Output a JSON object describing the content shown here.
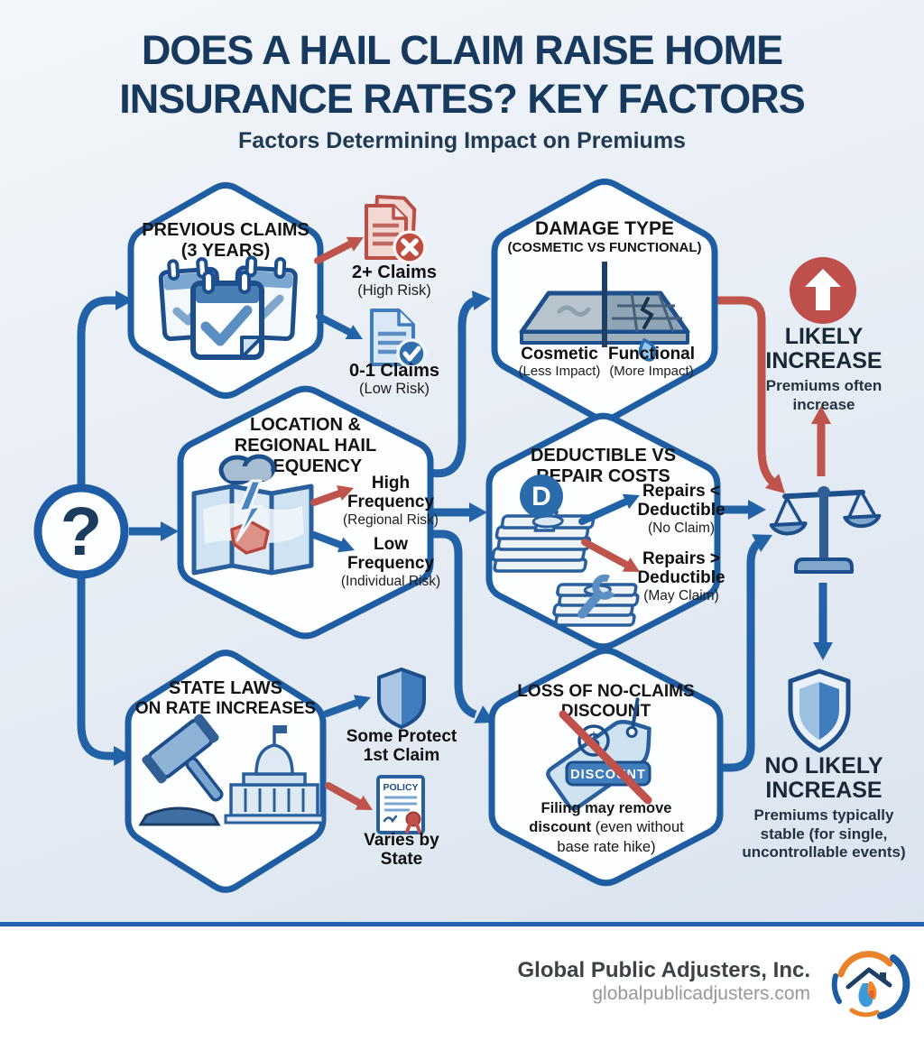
{
  "colors": {
    "navy": "#17395e",
    "flow_blue": "#2263a7",
    "flow_red": "#bf544c",
    "hex_border": "#1f5da3",
    "footer_bar": "#2262ae"
  },
  "header": {
    "title_line1": "DOES A HAIL CLAIM RAISE HOME",
    "title_line2": "INSURANCE RATES? KEY FACTORS",
    "subtitle": "Factors Determining Impact on Premiums"
  },
  "start": {
    "question_mark": "?"
  },
  "factors": {
    "previous_claims": {
      "title1": "PREVIOUS CLAIMS",
      "title2": "(3 YEARS)",
      "high": {
        "label": "2+ Claims",
        "sub": "(High Risk)"
      },
      "low": {
        "label": "0-1 Claims",
        "sub": "(Low Risk)"
      }
    },
    "damage_type": {
      "title1": "DAMAGE TYPE",
      "title2": "(COSMETIC VS FUNCTIONAL)",
      "cosmetic": {
        "label": "Cosmetic",
        "sub": "(Less Impact)"
      },
      "functional": {
        "label": "Functional",
        "sub": "(More Impact)"
      }
    },
    "location": {
      "title1": "LOCATION &",
      "title2": "REGIONAL HAIL",
      "title3": "FREQUENCY",
      "high": {
        "l1": "High",
        "l2": "Frequency",
        "sub": "(Regional Risk)"
      },
      "low": {
        "l1": "Low",
        "l2": "Frequency",
        "sub": "(Individual Risk)"
      }
    },
    "deductible": {
      "title1": "DEDUCTIBLE VS",
      "title2": "REPAIR COSTS",
      "badge": "D",
      "no_claim": {
        "l1": "Repairs <",
        "l2": "Deductible",
        "sub": "(No Claim)"
      },
      "may_claim": {
        "l1": "Repairs >",
        "l2": "Deductible",
        "sub": "(May Claim)"
      }
    },
    "state_laws": {
      "title1": "STATE LAWS",
      "title2": "ON RATE INCREASES",
      "protect": {
        "l1": "Some Protect",
        "l2": "1st Claim"
      },
      "varies": {
        "l1": "Varies by",
        "l2": "State"
      },
      "policy_label": "POLICY"
    },
    "no_claims_discount": {
      "title1": "LOSS OF NO-CLAIMS",
      "title2": "DISCOUNT",
      "tag_dollar": "$",
      "tag_label": "DISCOUNT",
      "note_l1": "Filing may remove",
      "note_l2_bold": "discount",
      "note_l2_rest": " (even without",
      "note_l3": "base rate hike)"
    }
  },
  "outcomes": {
    "likely_increase": {
      "t1": "LIKELY",
      "t2": "INCREASE",
      "s1": "Premiums often",
      "s2": "increase"
    },
    "no_likely_increase": {
      "t1": "NO LIKELY",
      "t2": "INCREASE",
      "s1": "Premiums typically",
      "s2_bold": "stable",
      "s2_rest": " (for single,",
      "s3": "uncontrollable events)"
    }
  },
  "footer": {
    "company": "Global Public Adjusters, Inc.",
    "website": "globalpublicadjusters.com"
  }
}
